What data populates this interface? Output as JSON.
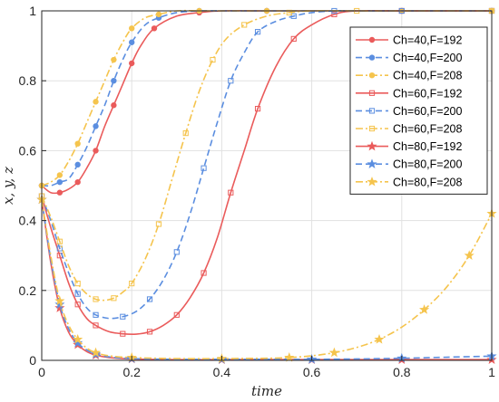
{
  "chart_data": {
    "type": "line",
    "title": "",
    "xlabel": "time",
    "ylabel": "x, y, z",
    "xlim": [
      0,
      1
    ],
    "ylim": [
      0,
      1
    ],
    "xticks": [
      "0",
      "0.2",
      "0.4",
      "0.6",
      "0.8",
      "1"
    ],
    "yticks": [
      "0",
      "0.2",
      "0.4",
      "0.6",
      "0.8",
      "1"
    ],
    "grid": true,
    "legend_position": "top-right",
    "series": [
      {
        "name": "Ch=40,F=192",
        "color": "#ea5b5b",
        "dash": "solid",
        "marker": "circle",
        "x": [
          0,
          0.02,
          0.04,
          0.06,
          0.08,
          0.1,
          0.12,
          0.14,
          0.16,
          0.18,
          0.2,
          0.22,
          0.25,
          0.3,
          0.35,
          0.4,
          0.5,
          0.6,
          0.8,
          1.0
        ],
        "y": [
          0.5,
          0.48,
          0.48,
          0.49,
          0.51,
          0.55,
          0.6,
          0.67,
          0.73,
          0.79,
          0.85,
          0.9,
          0.95,
          0.985,
          0.995,
          1.0,
          1.0,
          1.0,
          1.0,
          1.0
        ]
      },
      {
        "name": "Ch=40,F=200",
        "color": "#5b8ee0",
        "dash": "dash",
        "marker": "circle",
        "x": [
          0,
          0.02,
          0.04,
          0.06,
          0.08,
          0.1,
          0.12,
          0.14,
          0.16,
          0.18,
          0.2,
          0.23,
          0.26,
          0.3,
          0.35,
          0.4,
          0.5,
          0.6,
          0.8,
          1.0
        ],
        "y": [
          0.5,
          0.5,
          0.51,
          0.52,
          0.56,
          0.61,
          0.67,
          0.73,
          0.8,
          0.86,
          0.91,
          0.96,
          0.98,
          0.995,
          1.0,
          1.0,
          1.0,
          1.0,
          1.0,
          1.0
        ]
      },
      {
        "name": "Ch=40,F=208",
        "color": "#f5c44d",
        "dash": "dashdot",
        "marker": "circle",
        "x": [
          0,
          0.02,
          0.04,
          0.06,
          0.08,
          0.1,
          0.12,
          0.14,
          0.16,
          0.18,
          0.2,
          0.23,
          0.26,
          0.3,
          0.35,
          0.4,
          0.5,
          0.6,
          0.8,
          1.0
        ],
        "y": [
          0.5,
          0.51,
          0.53,
          0.57,
          0.62,
          0.68,
          0.74,
          0.8,
          0.86,
          0.91,
          0.95,
          0.98,
          0.99,
          1.0,
          1.0,
          1.0,
          1.0,
          1.0,
          1.0,
          1.0
        ]
      },
      {
        "name": "Ch=60,F=192",
        "color": "#ea5b5b",
        "dash": "solid",
        "marker": "square",
        "x": [
          0,
          0.02,
          0.04,
          0.06,
          0.08,
          0.1,
          0.12,
          0.15,
          0.18,
          0.21,
          0.24,
          0.27,
          0.3,
          0.33,
          0.36,
          0.39,
          0.42,
          0.45,
          0.48,
          0.52,
          0.56,
          0.6,
          0.65,
          0.7,
          0.8,
          1.0
        ],
        "y": [
          0.47,
          0.38,
          0.3,
          0.22,
          0.16,
          0.12,
          0.1,
          0.082,
          0.076,
          0.075,
          0.082,
          0.1,
          0.13,
          0.18,
          0.25,
          0.35,
          0.48,
          0.6,
          0.72,
          0.84,
          0.92,
          0.96,
          0.99,
          1.0,
          1.0,
          1.0
        ]
      },
      {
        "name": "Ch=60,F=200",
        "color": "#5b8ee0",
        "dash": "dash",
        "marker": "square",
        "x": [
          0,
          0.02,
          0.04,
          0.06,
          0.08,
          0.1,
          0.12,
          0.15,
          0.18,
          0.21,
          0.24,
          0.27,
          0.3,
          0.33,
          0.36,
          0.39,
          0.42,
          0.45,
          0.48,
          0.52,
          0.56,
          0.6,
          0.65,
          0.7,
          0.8,
          1.0
        ],
        "y": [
          0.47,
          0.4,
          0.32,
          0.25,
          0.19,
          0.15,
          0.13,
          0.12,
          0.125,
          0.14,
          0.175,
          0.23,
          0.31,
          0.42,
          0.55,
          0.68,
          0.8,
          0.88,
          0.94,
          0.97,
          0.985,
          0.995,
          1.0,
          1.0,
          1.0,
          1.0
        ]
      },
      {
        "name": "Ch=60,F=208",
        "color": "#f5c44d",
        "dash": "dashdot",
        "marker": "square",
        "x": [
          0,
          0.02,
          0.04,
          0.06,
          0.08,
          0.1,
          0.12,
          0.14,
          0.16,
          0.18,
          0.2,
          0.23,
          0.26,
          0.29,
          0.32,
          0.35,
          0.38,
          0.41,
          0.45,
          0.5,
          0.55,
          0.6,
          0.7,
          0.8,
          1.0
        ],
        "y": [
          0.47,
          0.41,
          0.34,
          0.27,
          0.22,
          0.19,
          0.175,
          0.172,
          0.178,
          0.195,
          0.22,
          0.29,
          0.39,
          0.52,
          0.65,
          0.77,
          0.86,
          0.92,
          0.96,
          0.985,
          0.995,
          1.0,
          1.0,
          1.0,
          1.0
        ]
      },
      {
        "name": "Ch=80,F=192",
        "color": "#ea5b5b",
        "dash": "solid",
        "marker": "star",
        "x": [
          0,
          0.02,
          0.04,
          0.06,
          0.08,
          0.1,
          0.12,
          0.15,
          0.2,
          0.3,
          0.4,
          0.5,
          0.6,
          0.7,
          0.8,
          0.9,
          1.0
        ],
        "y": [
          0.46,
          0.28,
          0.15,
          0.08,
          0.045,
          0.025,
          0.015,
          0.008,
          0.004,
          0.002,
          0.002,
          0.002,
          0.002,
          0.002,
          0.002,
          0.002,
          0.002
        ]
      },
      {
        "name": "Ch=80,F=200",
        "color": "#5b8ee0",
        "dash": "dash",
        "marker": "star",
        "x": [
          0,
          0.02,
          0.04,
          0.06,
          0.08,
          0.1,
          0.12,
          0.15,
          0.2,
          0.3,
          0.4,
          0.5,
          0.6,
          0.7,
          0.8,
          0.9,
          1.0
        ],
        "y": [
          0.46,
          0.29,
          0.16,
          0.09,
          0.05,
          0.03,
          0.018,
          0.01,
          0.005,
          0.003,
          0.003,
          0.003,
          0.003,
          0.004,
          0.006,
          0.009,
          0.012
        ]
      },
      {
        "name": "Ch=80,F=208",
        "color": "#f5c44d",
        "dash": "dashdot",
        "marker": "star",
        "x": [
          0,
          0.02,
          0.04,
          0.06,
          0.08,
          0.1,
          0.12,
          0.15,
          0.2,
          0.3,
          0.4,
          0.5,
          0.55,
          0.6,
          0.65,
          0.7,
          0.75,
          0.8,
          0.85,
          0.9,
          0.95,
          1.0
        ],
        "y": [
          0.46,
          0.3,
          0.17,
          0.1,
          0.06,
          0.035,
          0.022,
          0.013,
          0.008,
          0.005,
          0.005,
          0.006,
          0.008,
          0.013,
          0.022,
          0.037,
          0.06,
          0.095,
          0.145,
          0.21,
          0.3,
          0.42
        ]
      }
    ]
  }
}
